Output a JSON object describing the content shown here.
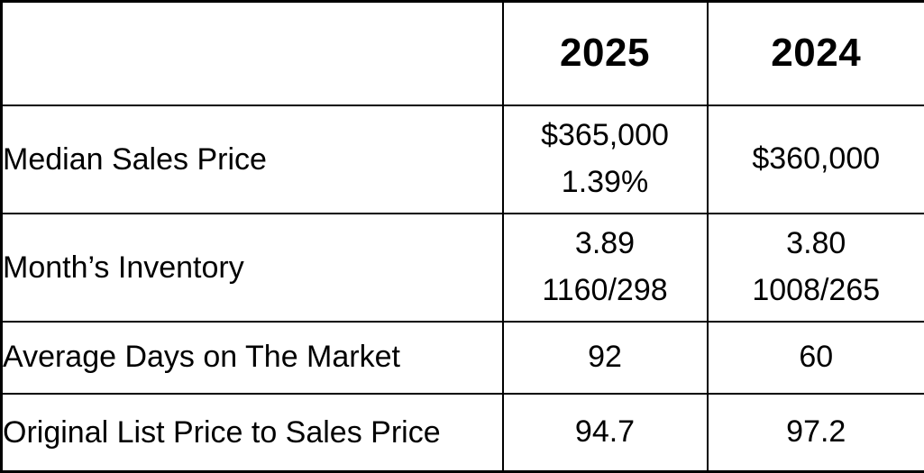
{
  "colors": {
    "background": "#ffffff",
    "border": "#000000",
    "text": "#000000"
  },
  "header": {
    "label_col": "",
    "col_2025": "2025",
    "col_2024": "2024"
  },
  "rows": {
    "median_sales_price": {
      "label": "Median Sales Price",
      "v2025_line1": "$365,000",
      "v2025_line2": "1.39%",
      "v2024_line1": "$360,000"
    },
    "months_inventory": {
      "label": "Month’s Inventory",
      "v2025_line1": "3.89",
      "v2025_line2": "1160/298",
      "v2024_line1": "3.80",
      "v2024_line2": "1008/265"
    },
    "average_days_on_market": {
      "label": "Average Days on The Market",
      "v2025": "92",
      "v2024": "60"
    },
    "original_list_to_sales": {
      "label": "Original List Price to Sales Price",
      "v2025": "94.7",
      "v2024": "97.2"
    }
  },
  "chart_data": {
    "type": "table",
    "columns": [
      "",
      "2025",
      "2024"
    ],
    "rows": [
      [
        "Median Sales Price",
        "$365,000 | 1.39%",
        "$360,000"
      ],
      [
        "Month’s Inventory",
        "3.89 | 1160/298",
        "3.80 | 1008/265"
      ],
      [
        "Average Days on The Market",
        "92",
        "60"
      ],
      [
        "Original List Price to Sales Price",
        "94.7",
        "97.2"
      ]
    ],
    "title": "",
    "legend_position": "none",
    "grid": true
  }
}
